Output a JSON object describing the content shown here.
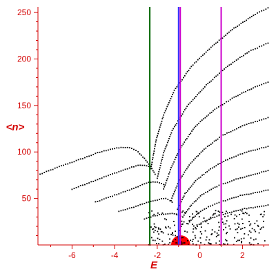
{
  "chart_data": {
    "type": "scatter",
    "xlabel": "E",
    "ylabel": "<n>",
    "xlim": [
      -7.6,
      3.25
    ],
    "ylim": [
      0,
      256
    ],
    "x_ticks": [
      -6,
      -4,
      -2,
      0,
      2
    ],
    "y_ticks": [
      50,
      100,
      150,
      200,
      250
    ],
    "grid": false,
    "colors": {
      "axes": "#d40000",
      "points": "#000000"
    },
    "vertical_lines": [
      {
        "x": -2.35,
        "color": "#006400"
      },
      {
        "x": -1.0,
        "color": "#3030ff"
      },
      {
        "x": -0.92,
        "color": "#cc00cc"
      },
      {
        "x": 1.0,
        "color": "#cc00cc"
      }
    ],
    "marker": {
      "x": -0.9,
      "y": 0,
      "radius_data_x": 0.45,
      "color": "#ff0000"
    },
    "branches": [
      {
        "x": [
          -7.5,
          -6.5,
          -5.5,
          -4.8,
          -4.2,
          -3.6,
          -3.2,
          -2.9,
          -2.6,
          -2.4
        ],
        "y": [
          76,
          85,
          93,
          99,
          103,
          105,
          104,
          100,
          93,
          87
        ]
      },
      {
        "x": [
          -6.0,
          -5.2,
          -4.5,
          -3.9,
          -3.4,
          -3.0,
          -2.7,
          -2.3,
          -2.1
        ],
        "y": [
          60,
          67,
          73,
          78,
          82,
          85,
          86,
          84,
          76
        ]
      },
      {
        "x": [
          -4.9,
          -4.3,
          -3.7,
          -3.2,
          -2.8,
          -2.4,
          -2.0,
          -1.7
        ],
        "y": [
          46,
          51,
          56,
          60,
          64,
          67,
          68,
          65
        ]
      },
      {
        "x": [
          -3.8,
          -3.2,
          -2.7,
          -2.3,
          -1.9,
          -1.6,
          -1.3
        ],
        "y": [
          36,
          40,
          44,
          47,
          49,
          50,
          46
        ]
      },
      {
        "x": [
          -2.6,
          -2.2,
          -1.8,
          -1.4,
          -1.1,
          -0.8
        ],
        "y": [
          28,
          31,
          33,
          34,
          33,
          30
        ]
      },
      {
        "x": [
          -2.3,
          -2.05,
          -1.7,
          -1.2,
          -0.4,
          0.6,
          1.6,
          2.6,
          3.2
        ],
        "y": [
          82,
          113,
          140,
          166,
          192,
          214,
          233,
          248,
          255
        ]
      },
      {
        "x": [
          -2.0,
          -1.7,
          -1.3,
          -0.6,
          0.3,
          1.3,
          2.3,
          3.2
        ],
        "y": [
          72,
          99,
          123,
          149,
          172,
          192,
          208,
          217
        ]
      },
      {
        "x": [
          -1.7,
          -1.35,
          -0.9,
          -0.2,
          0.7,
          1.7,
          2.6,
          3.2
        ],
        "y": [
          60,
          83,
          105,
          128,
          146,
          160,
          170,
          175
        ]
      },
      {
        "x": [
          -1.35,
          -1.0,
          -0.5,
          0.2,
          1.0,
          2.0,
          3.2
        ],
        "y": [
          48,
          68,
          86,
          103,
          117,
          128,
          137
        ]
      },
      {
        "x": [
          -1.05,
          -0.7,
          -0.2,
          0.5,
          1.3,
          2.2,
          3.2
        ],
        "y": [
          38,
          55,
          69,
          82,
          92,
          100,
          106
        ]
      },
      {
        "x": [
          -0.8,
          -0.4,
          0.1,
          0.8,
          1.6,
          2.4,
          3.2
        ],
        "y": [
          30,
          43,
          54,
          63,
          70,
          75,
          80
        ]
      },
      {
        "x": [
          -0.55,
          -0.15,
          0.4,
          1.1,
          1.9,
          2.6,
          3.2
        ],
        "y": [
          23,
          33,
          41,
          47,
          53,
          56,
          59
        ]
      },
      {
        "x": [
          -0.3,
          0.15,
          0.7,
          1.4,
          2.1,
          2.8,
          3.2
        ],
        "y": [
          17,
          25,
          30,
          35,
          39,
          41,
          43
        ]
      }
    ],
    "noise_region": {
      "x_range": [
        -2.4,
        3.2
      ],
      "y_range": [
        0,
        38
      ],
      "count": 230
    }
  }
}
